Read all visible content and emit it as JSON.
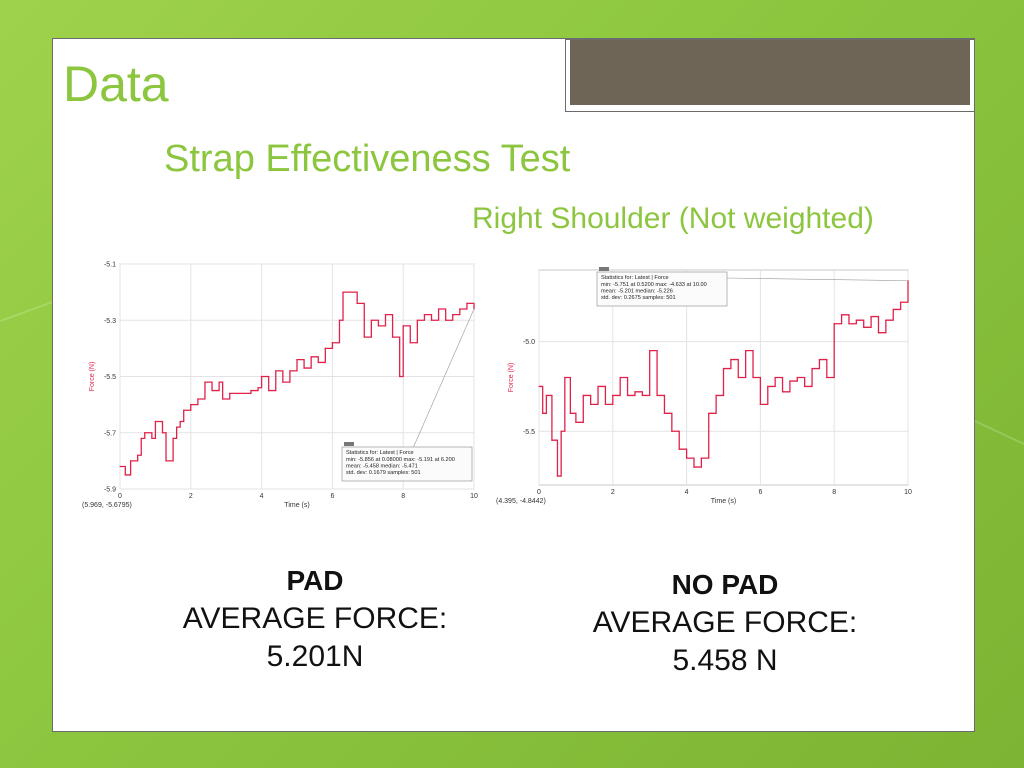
{
  "slide": {
    "title": "Data",
    "subtitle": "Strap Effectiveness Test",
    "subsubtitle": "Right Shoulder (Not weighted)"
  },
  "colors": {
    "accent": "#8cc63f",
    "series": "#e0224a",
    "tab": "#6e6556"
  },
  "captions": {
    "pad": {
      "heading": "PAD",
      "line1": "AVERAGE FORCE:",
      "line2": "5.201N"
    },
    "nopad": {
      "heading": "NO PAD",
      "line1": "AVERAGE FORCE:",
      "line2": "5.458 N"
    }
  },
  "chart_data": [
    {
      "type": "line",
      "xlabel": "Time (s)",
      "ylabel": "Force (N)",
      "xlim": [
        0,
        10
      ],
      "ylim": [
        -5.9,
        -5.1
      ],
      "x_ticks": [
        "0",
        "2",
        "4",
        "6",
        "8",
        "10"
      ],
      "y_ticks": [
        "-5.1",
        "-5.3",
        "-5.5",
        "-5.7",
        "-5.9"
      ],
      "grid": true,
      "cursor_readout": "(5.969, -5.6795)",
      "stats_box": {
        "label": "Statistics for: Latest | Force",
        "lines": [
          "min: -5.856 at 0.08000 max: -5.191 at 6.200",
          "mean: -5.458 median: -5.471",
          "std. dev: 0.1679 samples: 501"
        ],
        "position": "bottom-right"
      },
      "series": [
        {
          "x": [
            0,
            0.15,
            0.3,
            0.5,
            0.6,
            0.7,
            0.9,
            1.0,
            1.2,
            1.3,
            1.5,
            1.6,
            1.7,
            1.8,
            2.0,
            2.2,
            2.4,
            2.6,
            2.8,
            2.9,
            3.1,
            3.3,
            3.5,
            3.7,
            3.9,
            4.0,
            4.2,
            4.4,
            4.6,
            4.8,
            5.0,
            5.2,
            5.4,
            5.6,
            5.8,
            6.0,
            6.2,
            6.3,
            6.5,
            6.7,
            6.9,
            7.1,
            7.3,
            7.5,
            7.7,
            7.9,
            8.0,
            8.2,
            8.4,
            8.6,
            8.8,
            9.0,
            9.2,
            9.4,
            9.6,
            9.8,
            10.0
          ],
          "y": [
            -5.82,
            -5.85,
            -5.8,
            -5.78,
            -5.72,
            -5.7,
            -5.72,
            -5.66,
            -5.7,
            -5.8,
            -5.72,
            -5.68,
            -5.66,
            -5.62,
            -5.6,
            -5.58,
            -5.52,
            -5.55,
            -5.52,
            -5.58,
            -5.56,
            -5.56,
            -5.56,
            -5.55,
            -5.54,
            -5.5,
            -5.55,
            -5.48,
            -5.52,
            -5.48,
            -5.44,
            -5.47,
            -5.43,
            -5.45,
            -5.4,
            -5.38,
            -5.3,
            -5.2,
            -5.2,
            -5.24,
            -5.36,
            -5.3,
            -5.32,
            -5.28,
            -5.36,
            -5.5,
            -5.32,
            -5.38,
            -5.3,
            -5.28,
            -5.3,
            -5.26,
            -5.3,
            -5.28,
            -5.26,
            -5.24,
            -5.26
          ]
        }
      ]
    },
    {
      "type": "line",
      "xlabel": "Time (s)",
      "ylabel": "Force (N)",
      "xlim": [
        0,
        10
      ],
      "ylim": [
        -5.8,
        -4.6
      ],
      "x_ticks": [
        "0",
        "2",
        "4",
        "6",
        "8",
        "10"
      ],
      "y_ticks": [
        "-5.0",
        "-5.5"
      ],
      "grid": true,
      "cursor_readout": "(4.395, -4.8442)",
      "stats_box": {
        "label": "Statistics for: Latest | Force",
        "lines": [
          "min: -5.751 at 0.5200 max: -4.633 at 10.00",
          "mean: -5.201 median: -5.226",
          "std. dev: 0.2675 samples: 501"
        ],
        "position": "top-left"
      },
      "series": [
        {
          "x": [
            0,
            0.1,
            0.2,
            0.35,
            0.5,
            0.6,
            0.7,
            0.85,
            1.0,
            1.2,
            1.4,
            1.6,
            1.8,
            2.0,
            2.2,
            2.4,
            2.6,
            2.8,
            3.0,
            3.2,
            3.4,
            3.6,
            3.8,
            4.0,
            4.2,
            4.4,
            4.6,
            4.8,
            5.0,
            5.2,
            5.4,
            5.6,
            5.8,
            6.0,
            6.2,
            6.4,
            6.6,
            6.8,
            7.0,
            7.2,
            7.4,
            7.6,
            7.8,
            8.0,
            8.2,
            8.4,
            8.6,
            8.8,
            9.0,
            9.2,
            9.4,
            9.6,
            9.8,
            10.0
          ],
          "y": [
            -5.25,
            -5.4,
            -5.3,
            -5.55,
            -5.75,
            -5.5,
            -5.2,
            -5.4,
            -5.45,
            -5.3,
            -5.35,
            -5.25,
            -5.35,
            -5.3,
            -5.2,
            -5.3,
            -5.28,
            -5.3,
            -5.05,
            -5.3,
            -5.4,
            -5.5,
            -5.6,
            -5.65,
            -5.7,
            -5.65,
            -5.4,
            -5.3,
            -5.15,
            -5.1,
            -5.2,
            -5.05,
            -5.2,
            -5.35,
            -5.25,
            -5.2,
            -5.28,
            -5.22,
            -5.2,
            -5.25,
            -5.15,
            -5.1,
            -5.2,
            -4.9,
            -4.85,
            -4.9,
            -4.88,
            -4.92,
            -4.86,
            -4.95,
            -4.88,
            -4.82,
            -4.78,
            -4.66
          ]
        }
      ]
    }
  ]
}
